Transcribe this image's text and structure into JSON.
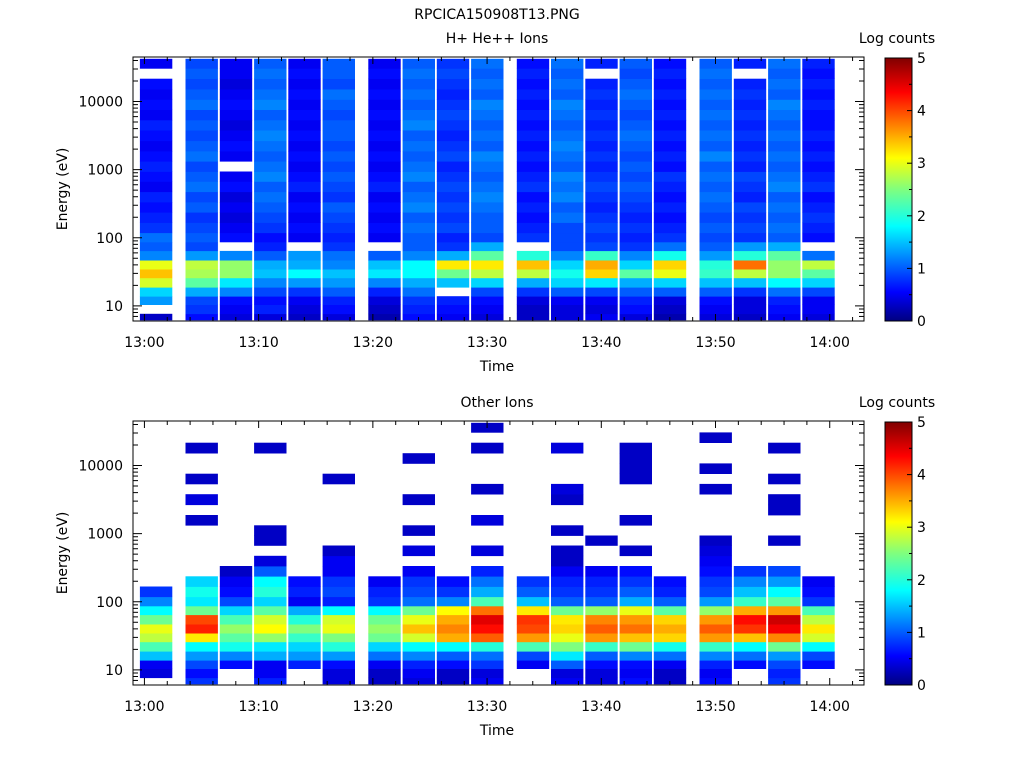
{
  "figure_title": "RPCICA150908T13.PNG",
  "colors": {
    "background": "#ffffff",
    "axis": "#000000",
    "missing": "#ffffff"
  },
  "chart_data": [
    {
      "type": "heatmap",
      "title": "H+ He++ Ions",
      "xlabel": "Time",
      "ylabel": "Energy (eV)",
      "yscale": "log",
      "ylim": [
        6,
        45000
      ],
      "xlim": [
        "12:59",
        "14:03"
      ],
      "x_ticks": [
        "13:00",
        "13:10",
        "13:20",
        "13:30",
        "13:40",
        "13:50",
        "14:00"
      ],
      "y_ticks": [
        "10",
        "100",
        "1000",
        "10000"
      ],
      "colorbar": {
        "label": "Log counts",
        "range": [
          0,
          5
        ],
        "ticks": [
          "0",
          "1",
          "2",
          "3",
          "4",
          "5"
        ]
      },
      "grid": false,
      "time_bins": [
        "13:01",
        "13:05",
        "13:08",
        "13:11",
        "13:14",
        "13:17",
        "13:21",
        "13:24",
        "13:27",
        "13:30",
        "13:34",
        "13:37",
        "13:40",
        "13:43",
        "13:46",
        "13:50",
        "13:53",
        "13:56",
        "13:59"
      ],
      "energy_bins_eV": [
        6.5,
        9,
        12,
        16,
        22,
        30,
        40,
        55,
        75,
        100,
        140,
        200,
        280,
        400,
        560,
        800,
        1100,
        1600,
        2200,
        3200,
        4500,
        6400,
        9000,
        12800,
        18000,
        26000,
        36000
      ],
      "log_counts": [
        [
          0.3,
          0.6,
          0.4,
          0.4,
          0.3,
          0.4,
          0.2,
          0.6,
          0.5,
          0.4,
          0.3,
          0.4,
          0.5,
          0.4,
          0.2,
          0.4,
          0.3,
          0.5,
          0.4
        ],
        [
          null,
          0.8,
          0.5,
          0.7,
          0.4,
          0.6,
          0.3,
          0.7,
          0.6,
          0.5,
          0.3,
          0.4,
          0.4,
          0.6,
          0.3,
          0.5,
          0.4,
          0.6,
          0.5
        ],
        [
          1.3,
          0.9,
          0.6,
          0.6,
          0.5,
          0.7,
          0.4,
          0.8,
          0.7,
          0.6,
          0.4,
          0.5,
          0.5,
          0.7,
          0.4,
          0.6,
          0.4,
          0.7,
          0.5
        ],
        [
          1.6,
          1.4,
          1.2,
          0.9,
          0.8,
          1.0,
          0.7,
          1.1,
          null,
          0.9,
          0.8,
          1.0,
          0.9,
          1.0,
          1.0,
          1.0,
          0.8,
          1.1,
          0.9
        ],
        [
          2.9,
          2.3,
          1.7,
          1.2,
          1.3,
          1.3,
          1.2,
          1.4,
          1.5,
          1.6,
          1.4,
          1.6,
          1.7,
          1.4,
          1.6,
          1.5,
          1.5,
          1.8,
          1.6
        ],
        [
          3.4,
          2.7,
          2.6,
          1.5,
          1.8,
          1.5,
          1.7,
          1.8,
          2.4,
          2.8,
          2.8,
          1.9,
          3.3,
          2.3,
          3.0,
          2.1,
          2.8,
          2.6,
          2.3
        ],
        [
          3.0,
          2.8,
          2.6,
          1.4,
          1.4,
          1.2,
          1.5,
          1.8,
          3.2,
          3.2,
          3.4,
          1.6,
          3.5,
          1.6,
          3.3,
          2.0,
          3.8,
          2.6,
          2.8
        ],
        [
          1.2,
          1.3,
          1.2,
          1.0,
          1.3,
          1.1,
          1.0,
          1.2,
          1.4,
          2.3,
          2.0,
          1.2,
          2.1,
          1.2,
          1.9,
          1.3,
          2.0,
          2.3,
          1.1
        ],
        [
          1.0,
          0.9,
          null,
          0.7,
          null,
          0.8,
          null,
          1.0,
          0.8,
          1.4,
          null,
          0.9,
          0.9,
          0.8,
          1.1,
          1.0,
          1.3,
          1.4,
          null
        ],
        [
          1.1,
          1.0,
          0.6,
          0.6,
          0.5,
          0.7,
          0.5,
          1.0,
          0.7,
          0.9,
          0.8,
          0.9,
          0.8,
          0.7,
          0.8,
          0.9,
          0.8,
          1.0,
          0.6
        ],
        [
          0.8,
          0.9,
          0.5,
          0.8,
          0.6,
          0.8,
          0.6,
          1.1,
          0.9,
          1.0,
          0.7,
          0.9,
          0.9,
          0.8,
          0.7,
          1.0,
          0.9,
          1.1,
          0.7
        ],
        [
          0.7,
          0.8,
          0.4,
          0.9,
          0.5,
          0.9,
          0.5,
          1.0,
          0.8,
          1.0,
          0.6,
          1.1,
          0.8,
          0.7,
          0.6,
          0.9,
          0.8,
          1.0,
          0.8
        ],
        [
          0.6,
          1.0,
          0.5,
          1.0,
          0.6,
          1.0,
          0.6,
          1.2,
          0.9,
          1.1,
          0.7,
          1.0,
          0.7,
          0.8,
          0.7,
          1.0,
          0.9,
          1.1,
          0.7
        ],
        [
          0.7,
          0.9,
          0.4,
          1.1,
          0.5,
          0.8,
          0.5,
          1.1,
          0.8,
          1.2,
          0.6,
          1.2,
          0.8,
          0.9,
          0.6,
          1.1,
          0.7,
          1.0,
          0.6
        ],
        [
          0.5,
          1.1,
          0.6,
          1.0,
          0.7,
          0.9,
          0.7,
          1.0,
          0.9,
          1.1,
          0.8,
          1.1,
          0.9,
          1.0,
          0.7,
          1.0,
          0.8,
          1.2,
          0.8
        ],
        [
          0.6,
          1.0,
          0.5,
          1.2,
          0.6,
          1.0,
          0.6,
          1.2,
          0.8,
          1.0,
          0.7,
          1.2,
          0.8,
          0.9,
          0.8,
          1.1,
          0.9,
          1.1,
          0.7
        ],
        [
          0.7,
          0.9,
          null,
          1.1,
          0.5,
          0.9,
          0.5,
          1.1,
          0.7,
          1.1,
          0.6,
          1.0,
          0.7,
          1.0,
          0.6,
          1.0,
          0.7,
          1.0,
          0.6
        ],
        [
          0.6,
          1.1,
          0.5,
          1.0,
          0.6,
          1.0,
          0.6,
          1.0,
          0.9,
          1.2,
          0.7,
          1.1,
          0.8,
          0.9,
          0.7,
          1.2,
          0.8,
          1.1,
          0.7
        ],
        [
          0.5,
          1.0,
          0.6,
          1.1,
          0.5,
          0.9,
          0.5,
          1.1,
          0.8,
          1.0,
          0.6,
          1.2,
          0.7,
          1.0,
          0.6,
          1.0,
          0.7,
          1.0,
          0.6
        ],
        [
          0.6,
          0.9,
          0.5,
          1.2,
          0.6,
          1.0,
          0.6,
          1.0,
          0.7,
          1.1,
          0.7,
          1.1,
          0.8,
          1.1,
          0.7,
          1.1,
          0.8,
          1.1,
          0.7
        ],
        [
          0.7,
          1.0,
          0.4,
          1.1,
          0.5,
          1.0,
          0.5,
          1.2,
          0.8,
          1.0,
          0.6,
          1.0,
          0.7,
          1.0,
          0.6,
          1.0,
          0.7,
          1.0,
          0.6
        ],
        [
          0.5,
          0.9,
          0.5,
          1.0,
          0.6,
          0.9,
          0.6,
          1.1,
          0.9,
          1.1,
          0.7,
          1.1,
          0.8,
          0.9,
          0.7,
          1.1,
          0.8,
          1.1,
          0.6
        ],
        [
          0.6,
          1.1,
          0.6,
          1.2,
          0.5,
          1.0,
          0.5,
          1.0,
          0.8,
          1.2,
          0.6,
          1.2,
          0.7,
          1.0,
          0.6,
          1.0,
          0.7,
          1.2,
          0.7
        ],
        [
          0.5,
          1.0,
          0.5,
          1.1,
          0.6,
          1.1,
          0.6,
          1.1,
          0.7,
          1.0,
          0.7,
          1.0,
          0.8,
          1.1,
          0.7,
          1.1,
          0.8,
          1.0,
          0.6
        ],
        [
          0.6,
          0.9,
          0.4,
          1.0,
          0.5,
          0.9,
          0.5,
          1.0,
          0.8,
          1.1,
          0.6,
          1.1,
          0.7,
          1.0,
          0.6,
          1.0,
          0.7,
          1.1,
          0.7
        ],
        [
          null,
          1.0,
          0.5,
          1.1,
          0.6,
          1.0,
          0.6,
          1.1,
          0.9,
          1.0,
          0.7,
          1.0,
          null,
          0.9,
          0.7,
          1.1,
          null,
          1.0,
          0.6
        ],
        [
          0.5,
          0.9,
          0.5,
          1.0,
          0.5,
          1.0,
          0.5,
          1.0,
          0.8,
          1.1,
          0.6,
          1.1,
          0.7,
          1.0,
          0.6,
          1.0,
          0.7,
          1.1,
          0.7
        ]
      ]
    },
    {
      "type": "heatmap",
      "title": "Other Ions",
      "xlabel": "Time",
      "ylabel": "Energy (eV)",
      "yscale": "log",
      "ylim": [
        6,
        45000
      ],
      "xlim": [
        "12:59",
        "14:03"
      ],
      "x_ticks": [
        "13:00",
        "13:10",
        "13:20",
        "13:30",
        "13:40",
        "13:50",
        "14:00"
      ],
      "y_ticks": [
        "10",
        "100",
        "1000",
        "10000"
      ],
      "colorbar": {
        "label": "Log counts",
        "range": [
          0,
          5
        ],
        "ticks": [
          "0",
          "1",
          "2",
          "3",
          "4",
          "5"
        ]
      },
      "grid": false,
      "time_bins": [
        "13:01",
        "13:05",
        "13:08",
        "13:11",
        "13:14",
        "13:17",
        "13:21",
        "13:24",
        "13:27",
        "13:30",
        "13:34",
        "13:37",
        "13:40",
        "13:43",
        "13:46",
        "13:50",
        "13:53",
        "13:56",
        "13:59"
      ],
      "energy_bins_eV": [
        6.5,
        9,
        12,
        16,
        22,
        30,
        40,
        55,
        75,
        100,
        140,
        200,
        280,
        400,
        560,
        800,
        1100,
        1600,
        2200,
        3200,
        4500,
        6400,
        9000,
        12800,
        18000,
        26000,
        36000
      ],
      "log_counts": [
        [
          null,
          0.8,
          null,
          0.7,
          null,
          0.4,
          0.3,
          0.4,
          0.3,
          0.5,
          null,
          0.5,
          0.4,
          0.6,
          0.3,
          0.6,
          null,
          0.8,
          null
        ],
        [
          0.4,
          0.6,
          null,
          0.5,
          null,
          0.4,
          0.3,
          0.5,
          0.3,
          0.4,
          null,
          0.4,
          0.4,
          0.5,
          0.3,
          0.5,
          null,
          0.7,
          null
        ],
        [
          0.5,
          0.9,
          0.6,
          0.5,
          0.7,
          0.6,
          0.5,
          0.7,
          0.6,
          0.8,
          0.5,
          1.0,
          0.6,
          0.6,
          0.5,
          0.7,
          0.6,
          0.9,
          0.6
        ],
        [
          1.5,
          1.3,
          1.2,
          1.4,
          1.3,
          1.3,
          1.1,
          1.2,
          1.0,
          1.1,
          0.9,
          1.7,
          1.0,
          1.2,
          1.1,
          1.2,
          1.1,
          1.3,
          0.9
        ],
        [
          2.2,
          1.8,
          1.9,
          1.7,
          1.6,
          2.0,
          1.6,
          1.8,
          1.8,
          2.0,
          2.2,
          2.5,
          2.1,
          2.4,
          1.9,
          2.1,
          1.8,
          2.4,
          1.8
        ],
        [
          2.8,
          3.2,
          2.3,
          2.6,
          2.1,
          2.5,
          2.4,
          2.9,
          3.5,
          3.9,
          3.6,
          3.0,
          3.6,
          3.4,
          3.3,
          3.6,
          3.4,
          3.7,
          2.9
        ],
        [
          3.0,
          4.2,
          2.6,
          3.1,
          2.5,
          3.0,
          2.6,
          3.4,
          3.7,
          4.3,
          4.0,
          3.3,
          3.9,
          3.8,
          3.5,
          3.9,
          4.1,
          4.4,
          3.2
        ],
        [
          2.4,
          4.0,
          2.2,
          2.9,
          2.0,
          2.9,
          2.4,
          3.0,
          3.5,
          4.5,
          4.1,
          3.2,
          3.7,
          3.6,
          3.3,
          3.6,
          4.3,
          4.6,
          2.8
        ],
        [
          1.8,
          2.4,
          1.6,
          2.3,
          1.4,
          1.8,
          1.8,
          2.4,
          3.1,
          3.8,
          3.2,
          2.4,
          2.6,
          3.0,
          2.3,
          2.6,
          3.5,
          3.6,
          2.2
        ],
        [
          1.2,
          1.7,
          0.9,
          1.6,
          0.5,
          0.7,
          0.8,
          1.1,
          1.2,
          2.2,
          1.5,
          1.0,
          1.0,
          1.4,
          1.0,
          1.3,
          2.1,
          2.3,
          0.8
        ],
        [
          0.8,
          1.9,
          0.6,
          2.0,
          0.7,
          0.9,
          0.7,
          0.9,
          0.8,
          1.4,
          1.0,
          0.8,
          0.8,
          1.0,
          0.7,
          0.9,
          1.5,
          1.8,
          0.6
        ],
        [
          null,
          1.6,
          0.5,
          1.8,
          0.6,
          0.8,
          0.5,
          0.8,
          0.6,
          1.1,
          0.8,
          0.7,
          0.7,
          0.8,
          0.6,
          0.8,
          1.2,
          1.3,
          0.5
        ],
        [
          null,
          null,
          0.3,
          1.0,
          null,
          0.5,
          null,
          0.5,
          null,
          0.7,
          null,
          0.5,
          0.5,
          0.6,
          null,
          0.6,
          0.8,
          0.9,
          null
        ],
        [
          null,
          null,
          null,
          0.4,
          null,
          0.5,
          null,
          null,
          null,
          null,
          null,
          0.3,
          null,
          null,
          null,
          0.5,
          null,
          null,
          null
        ],
        [
          null,
          null,
          null,
          null,
          null,
          0.3,
          null,
          0.4,
          null,
          0.4,
          null,
          0.3,
          null,
          0.3,
          null,
          0.4,
          null,
          null,
          null
        ],
        [
          null,
          null,
          null,
          0.3,
          null,
          null,
          null,
          null,
          null,
          null,
          null,
          null,
          0.3,
          null,
          null,
          0.3,
          null,
          0.3,
          null
        ],
        [
          null,
          null,
          null,
          0.3,
          null,
          null,
          null,
          0.3,
          null,
          null,
          null,
          0.3,
          null,
          null,
          null,
          null,
          null,
          null,
          null
        ],
        [
          null,
          0.3,
          null,
          null,
          null,
          null,
          null,
          null,
          null,
          0.4,
          null,
          null,
          null,
          0.3,
          null,
          null,
          null,
          null,
          null
        ],
        [
          null,
          null,
          null,
          null,
          null,
          null,
          null,
          null,
          null,
          null,
          null,
          null,
          null,
          null,
          null,
          null,
          null,
          0.3,
          null
        ],
        [
          null,
          0.4,
          null,
          null,
          null,
          null,
          null,
          0.3,
          null,
          null,
          null,
          0.3,
          null,
          null,
          null,
          null,
          null,
          0.3,
          null
        ],
        [
          null,
          null,
          null,
          null,
          null,
          null,
          null,
          null,
          null,
          0.3,
          null,
          0.4,
          null,
          null,
          null,
          0.3,
          null,
          null,
          null
        ],
        [
          null,
          0.3,
          null,
          null,
          null,
          0.3,
          null,
          null,
          null,
          null,
          null,
          null,
          null,
          0.3,
          null,
          null,
          null,
          0.3,
          null
        ],
        [
          null,
          null,
          null,
          null,
          null,
          null,
          null,
          null,
          null,
          null,
          null,
          null,
          null,
          0.3,
          null,
          0.3,
          null,
          null,
          null
        ],
        [
          null,
          null,
          null,
          null,
          null,
          null,
          null,
          0.3,
          null,
          null,
          null,
          null,
          null,
          0.3,
          null,
          null,
          null,
          null,
          null
        ],
        [
          null,
          0.3,
          null,
          0.3,
          null,
          null,
          null,
          null,
          null,
          0.3,
          null,
          0.4,
          null,
          0.3,
          null,
          null,
          null,
          0.3,
          null
        ],
        [
          null,
          null,
          null,
          null,
          null,
          null,
          null,
          null,
          null,
          null,
          null,
          null,
          null,
          null,
          null,
          0.3,
          null,
          null,
          null
        ],
        [
          null,
          null,
          null,
          null,
          null,
          null,
          null,
          null,
          null,
          0.3,
          null,
          null,
          null,
          null,
          null,
          null,
          null,
          null,
          null
        ]
      ]
    }
  ]
}
